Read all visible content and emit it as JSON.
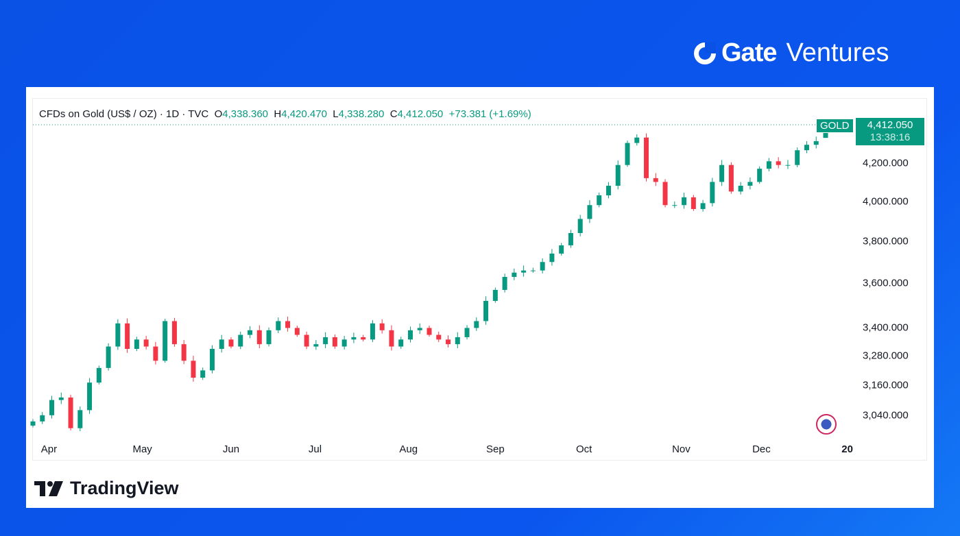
{
  "brand": {
    "mark": "Gate",
    "name": "Ventures"
  },
  "legend": {
    "symbol": "CFDs on Gold (US$ / OZ) · 1D · TVC",
    "o_label": "O",
    "o": "4,338.360",
    "h_label": "H",
    "h": "4,420.470",
    "l_label": "L",
    "l": "4,338.280",
    "c_label": "C",
    "c": "4,412.050",
    "change": "+73.381 (+1.69%)"
  },
  "price_tag": {
    "symbol": "GOLD",
    "price": "4,412.050",
    "countdown": "13:38:16"
  },
  "footer": {
    "logo": "TradingView"
  },
  "colors": {
    "up": "#089981",
    "down": "#f23645"
  },
  "chart_data": {
    "type": "candlestick",
    "title": "CFDs on Gold (US$ / OZ) · 1D · TVC",
    "yscale": "log",
    "ylim": [
      2960,
      4460
    ],
    "yticks": [
      {
        "value": 4200,
        "label": "4,200.000"
      },
      {
        "value": 4000,
        "label": "4,000.000"
      },
      {
        "value": 3800,
        "label": "3,800.000"
      },
      {
        "value": 3600,
        "label": "3,600.000"
      },
      {
        "value": 3400,
        "label": "3,400.000"
      },
      {
        "value": 3280,
        "label": "3,280.000"
      },
      {
        "value": 3160,
        "label": "3,160.000"
      },
      {
        "value": 3040,
        "label": "3,040.000"
      }
    ],
    "xticks": [
      {
        "at": 1.7,
        "label": "Apr"
      },
      {
        "at": 11.6,
        "label": "May"
      },
      {
        "at": 21,
        "label": "Jun"
      },
      {
        "at": 29.9,
        "label": "Jul"
      },
      {
        "at": 39.8,
        "label": "Aug"
      },
      {
        "at": 49,
        "label": "Sep"
      },
      {
        "at": 58.4,
        "label": "Oct"
      },
      {
        "at": 68.7,
        "label": "Nov"
      },
      {
        "at": 77.2,
        "label": "Dec"
      },
      {
        "at": 86.3,
        "label": "20",
        "bold": true
      }
    ],
    "first_open": 3000,
    "closes": [
      3016,
      3040,
      3100,
      3110,
      2990,
      3060,
      3170,
      3230,
      3320,
      3420,
      3310,
      3350,
      3320,
      3260,
      3430,
      3330,
      3260,
      3190,
      3220,
      3310,
      3350,
      3320,
      3370,
      3390,
      3330,
      3390,
      3430,
      3400,
      3370,
      3320,
      3330,
      3360,
      3320,
      3350,
      3360,
      3350,
      3420,
      3390,
      3320,
      3350,
      3390,
      3400,
      3370,
      3350,
      3330,
      3360,
      3400,
      3430,
      3520,
      3570,
      3630,
      3650,
      3660,
      3660,
      3700,
      3740,
      3780,
      3840,
      3910,
      3980,
      4030,
      4080,
      4190,
      4310,
      4340,
      4120,
      4100,
      3980,
      3980,
      4020,
      3960,
      3990,
      4100,
      4190,
      4050,
      4080,
      4100,
      4170,
      4210,
      4190,
      4190,
      4270,
      4300,
      4320,
      4412
    ],
    "last_candle": {
      "open": 4338.36,
      "high": 4420.47,
      "low": 4338.28,
      "close": 4412.05
    },
    "last_price": 4412.05
  }
}
